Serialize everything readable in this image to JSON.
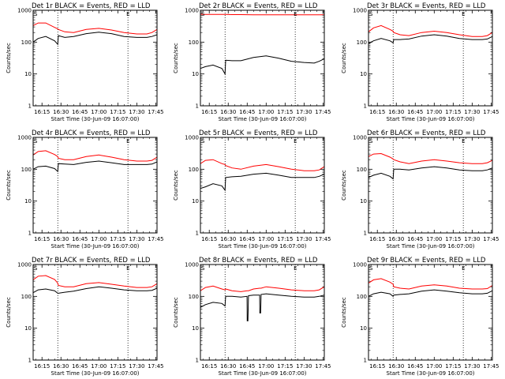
{
  "chart_data": {
    "type": "line",
    "common": {
      "xlabel": "Start Time (30-Jun-09 16:07:00)",
      "ylabel": "Counts/sec",
      "x_tick_labels": [
        "16:15",
        "16:30",
        "16:45",
        "17:00",
        "17:15",
        "17:30",
        "17:45"
      ],
      "x_tick_minutes": [
        15,
        30,
        45,
        60,
        75,
        90,
        105
      ],
      "xlim_minutes_after_16h": [
        8,
        106
      ],
      "yscale": "log",
      "ylim": [
        1,
        1000
      ],
      "y_tick_labels": [
        "1",
        "10",
        "100",
        "1000"
      ],
      "y_tick_values": [
        1,
        10,
        100,
        1000
      ],
      "vlines_minutes_after_16h": [
        27.5,
        83
      ],
      "corner_markers": [
        "S",
        "E"
      ],
      "series_colors": {
        "events": "#000000",
        "lld": "#ff0000"
      }
    },
    "panels": [
      {
        "title": "Det 1r BLACK = Events, RED = LLD",
        "x": [
          8,
          12,
          18,
          25,
          27.5,
          28,
          33,
          40,
          50,
          60,
          70,
          80,
          90,
          98,
          102,
          106
        ],
        "series": [
          {
            "key": "events",
            "values": [
              100,
              130,
              150,
              110,
              85,
              160,
              140,
              150,
              185,
              205,
              185,
              150,
              140,
              140,
              150,
              170
            ]
          },
          {
            "key": "lld",
            "values": [
              330,
              400,
              400,
              290,
              260,
              250,
              210,
              200,
              250,
              270,
              240,
              200,
              180,
              180,
              200,
              250
            ]
          }
        ]
      },
      {
        "title": "Det 2r BLACK = Events, RED = LLD",
        "x": [
          8,
          12,
          18,
          25,
          27.5,
          28,
          33,
          40,
          50,
          60,
          70,
          80,
          90,
          98,
          102,
          106
        ],
        "series": [
          {
            "key": "events",
            "values": [
              15,
              17,
              19,
              15,
              10,
              27,
              26,
              26,
              33,
              37,
              31,
              25,
              23,
              22,
              25,
              30
            ]
          },
          {
            "key": "lld",
            "values": [
              750,
              740,
              740,
              740,
              740,
              740,
              730,
              730,
              720,
              720,
              720,
              720,
              720,
              720,
              720,
              720
            ]
          }
        ]
      },
      {
        "title": "Det 3r BLACK = Events, RED = LLD",
        "x": [
          8,
          12,
          18,
          25,
          27.5,
          28,
          33,
          40,
          50,
          60,
          70,
          80,
          90,
          98,
          102,
          106
        ],
        "series": [
          {
            "key": "events",
            "values": [
              90,
              110,
              130,
              110,
              95,
              120,
              120,
              125,
              155,
              170,
              155,
              130,
              120,
              120,
              125,
              150
            ]
          },
          {
            "key": "lld",
            "values": [
              210,
              280,
              330,
              250,
              220,
              200,
              170,
              160,
              200,
              220,
              200,
              170,
              150,
              150,
              160,
              200
            ]
          }
        ]
      },
      {
        "title": "Det 4r BLACK = Events, RED = LLD",
        "x": [
          8,
          12,
          18,
          25,
          27.5,
          28,
          33,
          40,
          50,
          60,
          70,
          80,
          90,
          98,
          102,
          106
        ],
        "series": [
          {
            "key": "events",
            "values": [
              100,
              120,
              125,
              105,
              85,
              150,
              145,
              140,
              165,
              180,
              160,
              140,
              140,
              140,
              145,
              170
            ]
          },
          {
            "key": "lld",
            "values": [
              280,
              360,
              380,
              290,
              250,
              220,
              200,
              200,
              250,
              280,
              240,
              200,
              180,
              180,
              190,
              240
            ]
          }
        ]
      },
      {
        "title": "Det 5r BLACK = Events, RED = LLD",
        "x": [
          8,
          12,
          18,
          25,
          27.5,
          28,
          33,
          40,
          50,
          60,
          70,
          80,
          90,
          98,
          102,
          106
        ],
        "series": [
          {
            "key": "events",
            "values": [
              25,
              28,
              35,
              30,
              22,
              55,
              58,
              60,
              70,
              75,
              65,
              55,
              55,
              55,
              60,
              70
            ]
          },
          {
            "key": "lld",
            "values": [
              150,
              190,
              200,
              150,
              140,
              130,
              110,
              100,
              125,
              140,
              120,
              100,
              90,
              90,
              95,
              120
            ]
          }
        ]
      },
      {
        "title": "Det 6r BLACK = Events, RED = LLD",
        "x": [
          8,
          12,
          18,
          25,
          27.5,
          28,
          33,
          40,
          50,
          60,
          70,
          80,
          90,
          98,
          102,
          106
        ],
        "series": [
          {
            "key": "events",
            "values": [
              55,
              65,
              75,
              60,
              50,
              100,
              100,
              95,
              110,
              120,
              110,
              95,
              90,
              90,
              95,
              110
            ]
          },
          {
            "key": "lld",
            "values": [
              250,
              300,
              310,
              240,
              210,
              200,
              170,
              150,
              180,
              200,
              180,
              160,
              150,
              150,
              160,
              190
            ]
          }
        ]
      },
      {
        "title": "Det 7r BLACK = Events, RED = LLD",
        "x": [
          8,
          12,
          18,
          25,
          27.5,
          28,
          33,
          40,
          50,
          60,
          70,
          80,
          90,
          98,
          102,
          106
        ],
        "series": [
          {
            "key": "events",
            "values": [
              130,
              160,
              170,
              150,
              125,
              125,
              135,
              145,
              175,
              200,
              180,
              160,
              150,
              150,
              155,
              180
            ]
          },
          {
            "key": "lld",
            "values": [
              330,
              430,
              450,
              340,
              260,
              220,
              200,
              200,
              250,
              270,
              240,
              210,
              190,
              190,
              200,
              250
            ]
          }
        ]
      },
      {
        "title": "Det 8r BLACK = Events, RED = LLD",
        "x": [
          8,
          12,
          18,
          25,
          27.5,
          28,
          33,
          40,
          44.9,
          45,
          45.6,
          46,
          50,
          54.9,
          55,
          55.6,
          56,
          60,
          70,
          80,
          90,
          98,
          102,
          106
        ],
        "series": [
          {
            "key": "events",
            "values": [
              45,
              55,
              65,
              60,
              50,
              100,
              100,
              95,
              100,
              17,
              17,
              105,
              110,
              110,
              30,
              30,
              115,
              120,
              110,
              100,
              95,
              95,
              100,
              110
            ]
          },
          {
            "key": "lld",
            "values": [
              150,
              190,
              210,
              170,
              160,
              170,
              150,
              140,
              150,
              150,
              150,
              150,
              170,
              180,
              180,
              180,
              180,
              200,
              180,
              160,
              150,
              150,
              160,
              200
            ]
          }
        ]
      },
      {
        "title": "Det 9r BLACK = Events, RED = LLD",
        "x": [
          8,
          12,
          18,
          25,
          27.5,
          28,
          33,
          40,
          50,
          60,
          70,
          80,
          90,
          98,
          102,
          106
        ],
        "series": [
          {
            "key": "events",
            "values": [
              100,
              120,
              135,
              120,
              100,
              110,
              115,
              120,
              145,
              160,
              145,
              130,
              120,
              120,
              125,
              150
            ]
          },
          {
            "key": "lld",
            "values": [
              260,
              330,
              360,
              280,
              240,
              200,
              180,
              170,
              210,
              230,
              210,
              180,
              170,
              170,
              175,
              220
            ]
          }
        ]
      }
    ]
  }
}
